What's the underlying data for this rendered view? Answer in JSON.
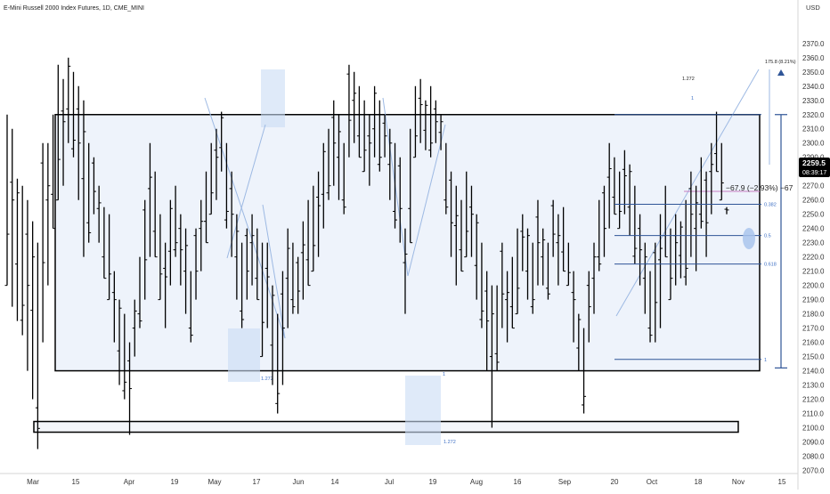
{
  "header": {
    "symbol_title": "E-Mini Russell 2000 Index Futures, 1D, CME_MINI",
    "currency": "USD"
  },
  "price_badge": {
    "price": "2259.5",
    "countdown": "08:39:17"
  },
  "colors": {
    "bars": "#000000",
    "range_box_fill": "#eef3fb",
    "fib_line": "#2f5597",
    "fib_label": "#3d6fc4",
    "measure_line": "#2f5597",
    "highlight_fill": "#c9dcf5",
    "ellipse_fill": "#a9c4ec",
    "projection_line": "#9db9e3",
    "badge_bg": "#000000",
    "badge_text": "#ffffff"
  },
  "chart_data": {
    "type": "ohlc",
    "title": "E-Mini Russell 2000 Index Futures, 1D, CME_MINI",
    "ylabel": "USD",
    "ylim": [
      2065,
      2375
    ],
    "y_ticks": [
      2070,
      2080,
      2090,
      2100,
      2110,
      2120,
      2130,
      2140,
      2150,
      2160,
      2170,
      2180,
      2190,
      2200,
      2210,
      2220,
      2230,
      2240,
      2250,
      2260,
      2270,
      2280,
      2290,
      2300,
      2310,
      2320,
      2330,
      2340,
      2350,
      2360,
      2370
    ],
    "x_labels": [
      "Mar",
      "15",
      "Apr",
      "19",
      "May",
      "17",
      "Jun",
      "14",
      "Jul",
      "19",
      "Aug",
      "16",
      "Sep",
      "20",
      "Oct",
      "18",
      "Nov",
      "15"
    ],
    "grid": false,
    "last_price": 2259.5,
    "daily_bars": [
      {
        "h": 2320,
        "l": 2200
      },
      {
        "h": 2310,
        "l": 2185
      },
      {
        "h": 2275,
        "l": 2175
      },
      {
        "h": 2270,
        "l": 2165
      },
      {
        "h": 2260,
        "l": 2140
      },
      {
        "h": 2245,
        "l": 2120
      },
      {
        "h": 2230,
        "l": 2085
      },
      {
        "h": 2300,
        "l": 2160
      },
      {
        "h": 2300,
        "l": 2200
      },
      {
        "h": 2320,
        "l": 2240
      },
      {
        "h": 2355,
        "l": 2260
      },
      {
        "h": 2345,
        "l": 2270
      },
      {
        "h": 2360,
        "l": 2300
      },
      {
        "h": 2350,
        "l": 2290
      },
      {
        "h": 2340,
        "l": 2260
      },
      {
        "h": 2330,
        "l": 2220
      },
      {
        "h": 2300,
        "l": 2230
      },
      {
        "h": 2290,
        "l": 2250
      },
      {
        "h": 2270,
        "l": 2230
      },
      {
        "h": 2255,
        "l": 2205
      },
      {
        "h": 2250,
        "l": 2190
      },
      {
        "h": 2210,
        "l": 2160
      },
      {
        "h": 2190,
        "l": 2130
      },
      {
        "h": 2180,
        "l": 2120
      },
      {
        "h": 2160,
        "l": 2095
      },
      {
        "h": 2190,
        "l": 2150
      },
      {
        "h": 2220,
        "l": 2170
      },
      {
        "h": 2260,
        "l": 2190
      },
      {
        "h": 2300,
        "l": 2220
      },
      {
        "h": 2280,
        "l": 2220
      },
      {
        "h": 2250,
        "l": 2190
      },
      {
        "h": 2230,
        "l": 2170
      },
      {
        "h": 2260,
        "l": 2200
      },
      {
        "h": 2270,
        "l": 2220
      },
      {
        "h": 2250,
        "l": 2200
      },
      {
        "h": 2240,
        "l": 2180
      },
      {
        "h": 2210,
        "l": 2160
      },
      {
        "h": 2240,
        "l": 2190
      },
      {
        "h": 2260,
        "l": 2210
      },
      {
        "h": 2280,
        "l": 2230
      },
      {
        "h": 2300,
        "l": 2250
      },
      {
        "h": 2310,
        "l": 2260
      },
      {
        "h": 2322,
        "l": 2280
      },
      {
        "h": 2300,
        "l": 2240
      },
      {
        "h": 2280,
        "l": 2220
      },
      {
        "h": 2250,
        "l": 2190
      },
      {
        "h": 2230,
        "l": 2170
      },
      {
        "h": 2240,
        "l": 2190
      },
      {
        "h": 2250,
        "l": 2200
      },
      {
        "h": 2240,
        "l": 2190
      },
      {
        "h": 2230,
        "l": 2150
      },
      {
        "h": 2230,
        "l": 2170
      },
      {
        "h": 2200,
        "l": 2130
      },
      {
        "h": 2180,
        "l": 2110
      },
      {
        "h": 2210,
        "l": 2130
      },
      {
        "h": 2240,
        "l": 2170
      },
      {
        "h": 2230,
        "l": 2180
      },
      {
        "h": 2220,
        "l": 2180
      },
      {
        "h": 2245,
        "l": 2190
      },
      {
        "h": 2260,
        "l": 2200
      },
      {
        "h": 2270,
        "l": 2210
      },
      {
        "h": 2280,
        "l": 2220
      },
      {
        "h": 2300,
        "l": 2240
      },
      {
        "h": 2310,
        "l": 2260
      },
      {
        "h": 2330,
        "l": 2270
      },
      {
        "h": 2320,
        "l": 2260
      },
      {
        "h": 2300,
        "l": 2250
      },
      {
        "h": 2355,
        "l": 2290
      },
      {
        "h": 2350,
        "l": 2300
      },
      {
        "h": 2340,
        "l": 2290
      },
      {
        "h": 2330,
        "l": 2280
      },
      {
        "h": 2320,
        "l": 2270
      },
      {
        "h": 2340,
        "l": 2290
      },
      {
        "h": 2330,
        "l": 2280
      },
      {
        "h": 2320,
        "l": 2290
      },
      {
        "h": 2310,
        "l": 2260
      },
      {
        "h": 2300,
        "l": 2240
      },
      {
        "h": 2290,
        "l": 2230
      },
      {
        "h": 2240,
        "l": 2180
      },
      {
        "h": 2310,
        "l": 2230
      },
      {
        "h": 2340,
        "l": 2290
      },
      {
        "h": 2345,
        "l": 2300
      },
      {
        "h": 2330,
        "l": 2295
      },
      {
        "h": 2340,
        "l": 2290
      },
      {
        "h": 2330,
        "l": 2300
      },
      {
        "h": 2320,
        "l": 2295
      },
      {
        "h": 2300,
        "l": 2250
      },
      {
        "h": 2280,
        "l": 2220
      },
      {
        "h": 2270,
        "l": 2200
      },
      {
        "h": 2260,
        "l": 2210
      },
      {
        "h": 2280,
        "l": 2220
      },
      {
        "h": 2270,
        "l": 2220
      },
      {
        "h": 2250,
        "l": 2190
      },
      {
        "h": 2230,
        "l": 2170
      },
      {
        "h": 2210,
        "l": 2140
      },
      {
        "h": 2200,
        "l": 2100
      },
      {
        "h": 2200,
        "l": 2140
      },
      {
        "h": 2230,
        "l": 2170
      },
      {
        "h": 2210,
        "l": 2160
      },
      {
        "h": 2220,
        "l": 2170
      },
      {
        "h": 2240,
        "l": 2180
      },
      {
        "h": 2250,
        "l": 2210
      },
      {
        "h": 2240,
        "l": 2190
      },
      {
        "h": 2230,
        "l": 2180
      },
      {
        "h": 2260,
        "l": 2200
      },
      {
        "h": 2240,
        "l": 2200
      },
      {
        "h": 2230,
        "l": 2190
      },
      {
        "h": 2260,
        "l": 2220
      },
      {
        "h": 2250,
        "l": 2200
      },
      {
        "h": 2255,
        "l": 2210
      },
      {
        "h": 2230,
        "l": 2200
      },
      {
        "h": 2210,
        "l": 2160
      },
      {
        "h": 2180,
        "l": 2140
      },
      {
        "h": 2170,
        "l": 2110
      },
      {
        "h": 2210,
        "l": 2160
      },
      {
        "h": 2230,
        "l": 2180
      },
      {
        "h": 2260,
        "l": 2210
      },
      {
        "h": 2270,
        "l": 2220
      },
      {
        "h": 2300,
        "l": 2240
      },
      {
        "h": 2290,
        "l": 2250
      },
      {
        "h": 2280,
        "l": 2240
      },
      {
        "h": 2295,
        "l": 2250
      },
      {
        "h": 2285,
        "l": 2235
      },
      {
        "h": 2270,
        "l": 2215
      },
      {
        "h": 2250,
        "l": 2200
      },
      {
        "h": 2230,
        "l": 2180
      },
      {
        "h": 2210,
        "l": 2160
      },
      {
        "h": 2230,
        "l": 2160
      },
      {
        "h": 2250,
        "l": 2170
      },
      {
        "h": 2270,
        "l": 2220
      },
      {
        "h": 2240,
        "l": 2190
      },
      {
        "h": 2250,
        "l": 2200
      },
      {
        "h": 2245,
        "l": 2205
      },
      {
        "h": 2260,
        "l": 2200
      },
      {
        "h": 2280,
        "l": 2220
      },
      {
        "h": 2270,
        "l": 2210
      },
      {
        "h": 2290,
        "l": 2240
      },
      {
        "h": 2280,
        "l": 2220
      },
      {
        "h": 2300,
        "l": 2250
      },
      {
        "h": 2322,
        "l": 2280
      },
      {
        "h": 2300,
        "l": 2260
      },
      {
        "h": 2255,
        "l": 2250
      }
    ]
  },
  "annotations": {
    "fib_levels": [
      {
        "level": "1",
        "price": 2148
      },
      {
        "level": "0.618",
        "price": 2215
      },
      {
        "level": "0.5",
        "price": 2235
      },
      {
        "level": "0.382",
        "price": 2257
      }
    ],
    "fib_extension_label": "1.272",
    "measure_label": "175.8 (8.21%)",
    "projection_label": "−67.9 (−2.93%) −67",
    "projection_labels_left": [
      {
        "text": "1.272",
        "where": "may"
      },
      {
        "text": "1",
        "where": "jul"
      },
      {
        "text": "1.272",
        "where": "jul-low"
      },
      {
        "text": "1",
        "where": "oct"
      }
    ],
    "range_box": {
      "top": 2320,
      "bottom": 2140
    },
    "support_box": {
      "top": 2105,
      "bottom": 2100
    }
  }
}
